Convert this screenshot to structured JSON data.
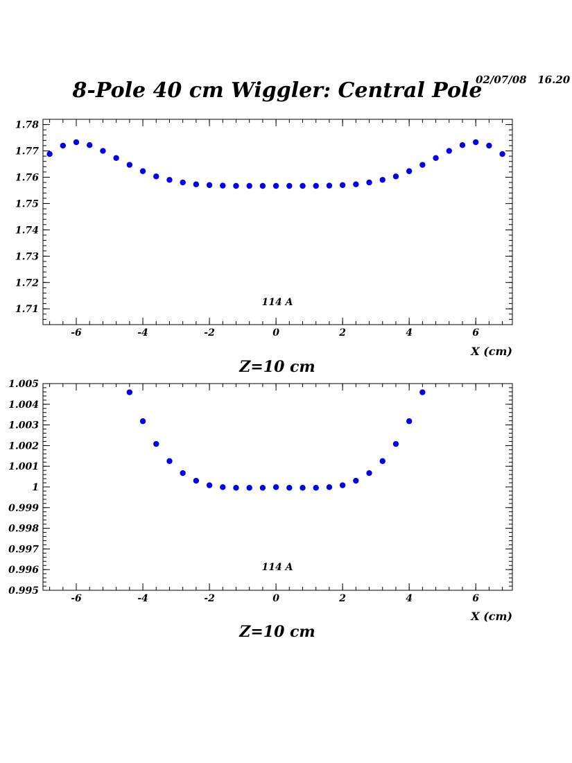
{
  "page": {
    "title": "8-Pole 40 cm Wiggler: Central Pole",
    "timestamp": "02/07/08   16.20"
  },
  "colors": {
    "marker": "#0000ee",
    "axis": "#000000"
  },
  "chart_data": [
    {
      "type": "scatter",
      "xlabel": "X (cm)",
      "ylabel": "",
      "subtitle": "Z=10 cm",
      "annotation": "114 A",
      "xlim": [
        -7,
        7.1
      ],
      "ylim": [
        1.704,
        1.782
      ],
      "xticks": [
        -6,
        -4,
        -2,
        0,
        2,
        4,
        6
      ],
      "xtick_labels": [
        "-6",
        "-4",
        "-2",
        "0",
        "2",
        "4",
        "6"
      ],
      "yticks": [
        1.71,
        1.72,
        1.73,
        1.74,
        1.75,
        1.76,
        1.77,
        1.78
      ],
      "ytick_labels": [
        "1.71",
        "1.72",
        "1.73",
        "1.74",
        "1.75",
        "1.76",
        "1.77",
        "1.78"
      ],
      "grid": false,
      "series": [
        {
          "x": [
            -6.8,
            -6.4,
            -6.0,
            -5.6,
            -5.2,
            -4.8,
            -4.4,
            -4.0,
            -3.6,
            -3.2,
            -2.8,
            -2.4,
            -2.0,
            -1.6,
            -1.2,
            -0.8,
            -0.4,
            0.0,
            0.4,
            0.8,
            1.2,
            1.6,
            2.0,
            2.4,
            2.8,
            3.2,
            3.6,
            4.0,
            4.4,
            4.8,
            5.2,
            5.6,
            6.0,
            6.4,
            6.8
          ],
          "y": [
            1.7688,
            1.772,
            1.7733,
            1.7722,
            1.77,
            1.7673,
            1.7647,
            1.7623,
            1.7603,
            1.759,
            1.758,
            1.7573,
            1.757,
            1.7568,
            1.7567,
            1.7567,
            1.7567,
            1.7567,
            1.7567,
            1.7567,
            1.7567,
            1.7568,
            1.757,
            1.7573,
            1.758,
            1.759,
            1.7603,
            1.7623,
            1.7647,
            1.7673,
            1.77,
            1.7722,
            1.7733,
            1.772,
            1.7688
          ]
        }
      ]
    },
    {
      "type": "scatter",
      "xlabel": "X (cm)",
      "ylabel": "",
      "subtitle": "Z=10 cm",
      "annotation": "114 A",
      "xlim": [
        -7,
        7.1
      ],
      "ylim": [
        0.995,
        1.005
      ],
      "xticks": [
        -6,
        -4,
        -2,
        0,
        2,
        4,
        6
      ],
      "xtick_labels": [
        "-6",
        "-4",
        "-2",
        "0",
        "2",
        "4",
        "6"
      ],
      "yticks": [
        0.995,
        0.996,
        0.997,
        0.998,
        0.999,
        1.0,
        1.001,
        1.002,
        1.003,
        1.004,
        1.005
      ],
      "ytick_labels": [
        "0.995",
        "0.996",
        "0.997",
        "0.998",
        "0.999",
        "1",
        "1.001",
        "1.002",
        "1.003",
        "1.004",
        "1.005"
      ],
      "grid": false,
      "series": [
        {
          "x": [
            -4.4,
            -4.0,
            -3.6,
            -3.2,
            -2.8,
            -2.4,
            -2.0,
            -1.6,
            -1.2,
            -0.8,
            -0.4,
            0.0,
            0.4,
            0.8,
            1.2,
            1.6,
            2.0,
            2.4,
            2.8,
            3.2,
            3.6,
            4.0,
            4.4
          ],
          "y": [
            1.00458,
            1.00318,
            1.00208,
            1.00125,
            1.00067,
            1.0003,
            1.00008,
            0.99999,
            0.99996,
            0.99996,
            0.99996,
            0.99999,
            0.99996,
            0.99996,
            0.99996,
            0.99999,
            1.00008,
            1.0003,
            1.00067,
            1.00125,
            1.00208,
            1.00318,
            1.00458
          ]
        }
      ]
    }
  ]
}
